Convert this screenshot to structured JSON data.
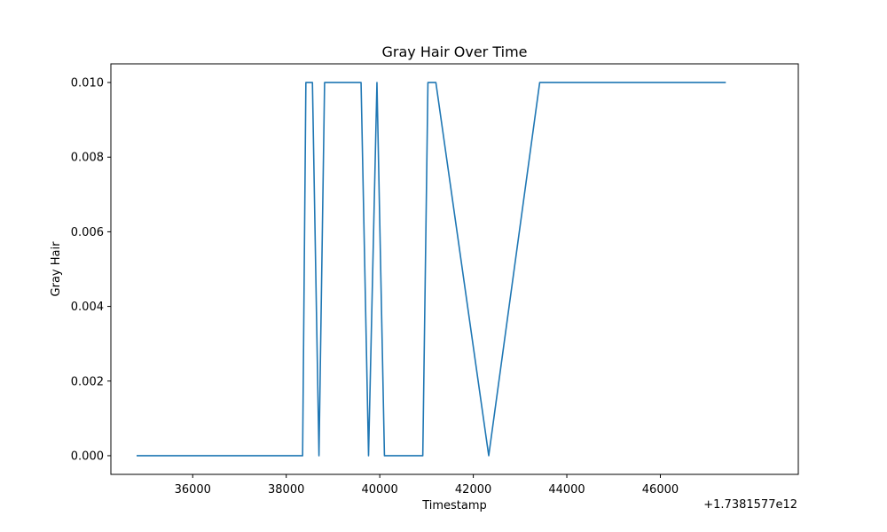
{
  "chart_data": {
    "type": "line",
    "title": "Gray Hair Over Time",
    "xlabel": "Timestamp",
    "ylabel": "Gray Hair",
    "x_offset_label": "+1.7381577e12",
    "xlim": [
      34250,
      48950
    ],
    "ylim": [
      -0.0005,
      0.0105
    ],
    "xticks": [
      36000,
      38000,
      40000,
      42000,
      44000,
      46000
    ],
    "yticks": [
      0.0,
      0.002,
      0.004,
      0.006,
      0.008,
      0.01
    ],
    "ytick_labels": [
      "0.000",
      "0.002",
      "0.004",
      "0.006",
      "0.008",
      "0.010"
    ],
    "grid": false,
    "series": [
      {
        "color": "#1f77b4",
        "points": [
          [
            34800,
            0.0
          ],
          [
            38350,
            0.0
          ],
          [
            38420,
            0.01
          ],
          [
            38560,
            0.01
          ],
          [
            38700,
            0.0
          ],
          [
            38820,
            0.01
          ],
          [
            39600,
            0.01
          ],
          [
            39760,
            0.0
          ],
          [
            39940,
            0.01
          ],
          [
            40100,
            0.0
          ],
          [
            40920,
            0.0
          ],
          [
            41030,
            0.01
          ],
          [
            41200,
            0.01
          ],
          [
            42330,
            0.0
          ],
          [
            43420,
            0.01
          ],
          [
            47400,
            0.01
          ]
        ]
      }
    ]
  }
}
